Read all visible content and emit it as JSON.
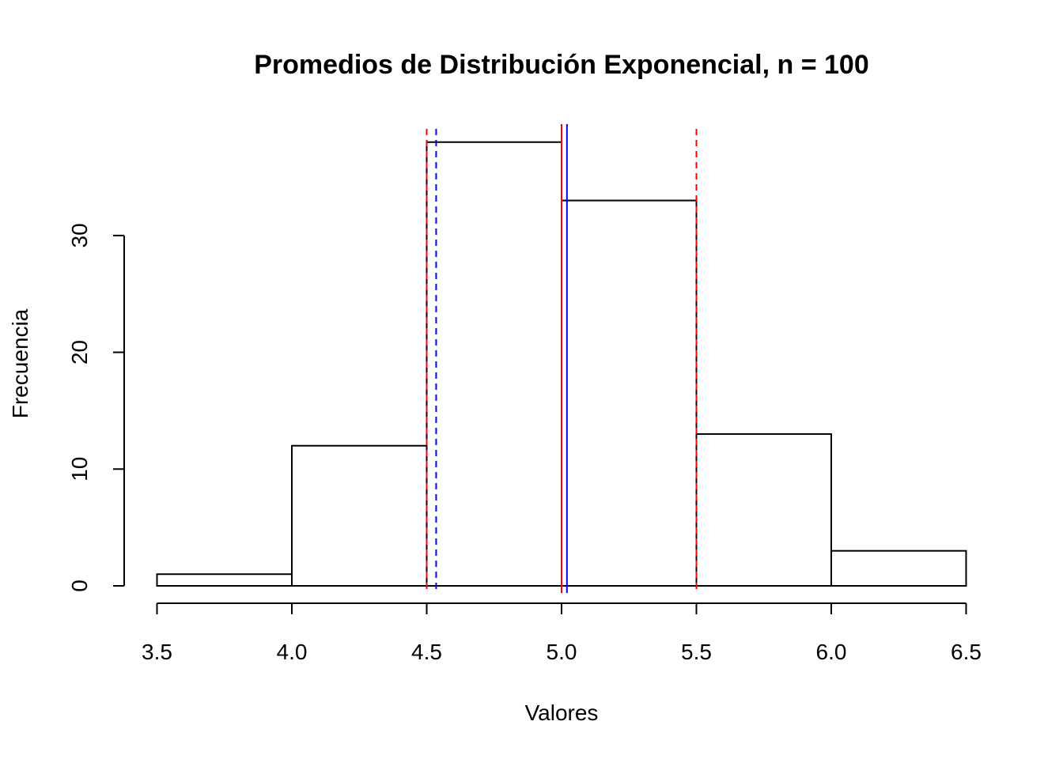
{
  "chart_data": {
    "type": "bar",
    "title": "Promedios de Distribución Exponencial, n = 100",
    "xlabel": "Valores",
    "ylabel": "Frecuencia",
    "bins": [
      {
        "from": 3.5,
        "to": 4.0,
        "count": 1
      },
      {
        "from": 4.0,
        "to": 4.5,
        "count": 12
      },
      {
        "from": 4.5,
        "to": 5.0,
        "count": 38
      },
      {
        "from": 5.0,
        "to": 5.5,
        "count": 33
      },
      {
        "from": 5.5,
        "to": 6.0,
        "count": 13
      },
      {
        "from": 6.0,
        "to": 6.5,
        "count": 3
      }
    ],
    "x_ticks": [
      "3.5",
      "4.0",
      "4.5",
      "5.0",
      "5.5",
      "6.0",
      "6.5"
    ],
    "y_ticks": [
      "0",
      "10",
      "20",
      "30"
    ],
    "xlim": [
      3.5,
      6.5
    ],
    "ylim": [
      0,
      38
    ],
    "grid": false,
    "vlines": [
      {
        "x": 5.0,
        "color": "#ff0000",
        "style": "solid"
      },
      {
        "x": 5.02,
        "color": "#0000ff",
        "style": "solid"
      },
      {
        "x": 4.5,
        "color": "#ff0000",
        "style": "dashed"
      },
      {
        "x": 5.5,
        "color": "#ff0000",
        "style": "dashed"
      },
      {
        "x": 4.535,
        "color": "#0000ff",
        "style": "dashed"
      }
    ]
  }
}
